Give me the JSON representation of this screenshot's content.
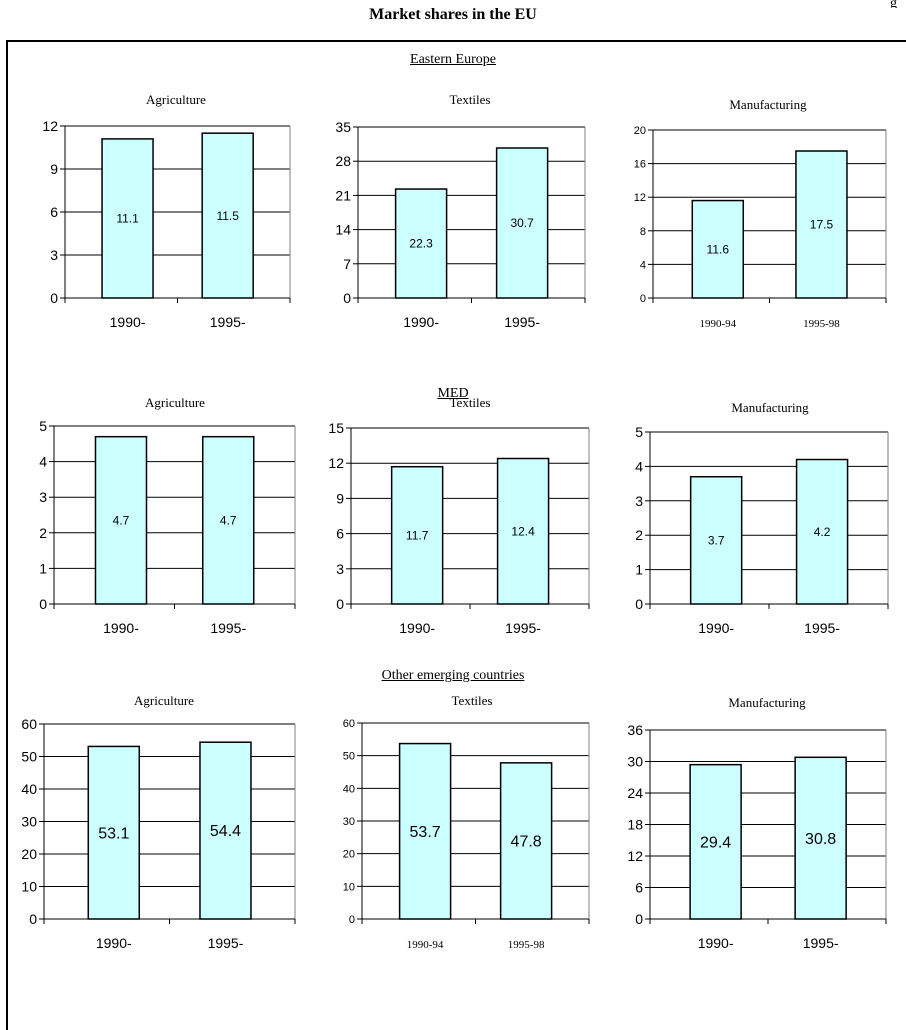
{
  "page_title": "Market shares in the EU",
  "sections": [
    {
      "label": "Eastern Europe"
    },
    {
      "label": "MED"
    },
    {
      "label": "Other emerging countries"
    }
  ],
  "colors": {
    "bar_fill": "#ccffff",
    "bar_stroke": "#000000"
  },
  "chart_data": [
    {
      "type": "bar",
      "group": "Eastern Europe",
      "title": "Agriculture",
      "categories": [
        "1990-",
        "1995-"
      ],
      "values": [
        11.1,
        11.5
      ],
      "data_labels": [
        "11.1",
        "11.5"
      ],
      "ylim": [
        0,
        12
      ],
      "yticks": [
        0,
        3,
        6,
        9,
        12
      ],
      "grid": true
    },
    {
      "type": "bar",
      "group": "Eastern Europe",
      "title": "Textiles",
      "categories": [
        "1990-",
        "1995-"
      ],
      "values": [
        22.3,
        30.7
      ],
      "data_labels": [
        "22.3",
        "30.7"
      ],
      "ylim": [
        0,
        35
      ],
      "yticks": [
        0,
        7,
        14,
        21,
        28,
        35
      ],
      "grid": true
    },
    {
      "type": "bar",
      "group": "Eastern Europe",
      "title": "Manufacturing",
      "categories": [
        "1990-94",
        "1995-98"
      ],
      "values": [
        11.6,
        17.5
      ],
      "data_labels": [
        "11.6",
        "17.5"
      ],
      "ylim": [
        0,
        20
      ],
      "yticks": [
        0,
        4,
        8,
        12,
        16,
        20
      ],
      "grid": true
    },
    {
      "type": "bar",
      "group": "MED",
      "title": "Agriculture",
      "categories": [
        "1990-",
        "1995-"
      ],
      "values": [
        4.7,
        4.7
      ],
      "data_labels": [
        "4.7",
        "4.7"
      ],
      "ylim": [
        0,
        5
      ],
      "yticks": [
        0,
        1,
        2,
        3,
        4,
        5
      ],
      "grid": true
    },
    {
      "type": "bar",
      "group": "MED",
      "title": "Textiles",
      "categories": [
        "1990-",
        "1995-"
      ],
      "values": [
        11.7,
        12.4
      ],
      "data_labels": [
        "11.7",
        "12.4"
      ],
      "ylim": [
        0,
        15
      ],
      "yticks": [
        0,
        3,
        6,
        9,
        12,
        15
      ],
      "grid": true
    },
    {
      "type": "bar",
      "group": "MED",
      "title": "Manufacturing",
      "categories": [
        "1990-",
        "1995-"
      ],
      "values": [
        3.7,
        4.2
      ],
      "data_labels": [
        "3.7",
        "4.2"
      ],
      "ylim": [
        0,
        5
      ],
      "yticks": [
        0,
        1,
        2,
        3,
        4,
        5
      ],
      "grid": true
    },
    {
      "type": "bar",
      "group": "Other emerging countries",
      "title": "Agriculture",
      "categories": [
        "1990-",
        "1995-"
      ],
      "values": [
        53.1,
        54.4
      ],
      "data_labels": [
        "53.1",
        "54.4"
      ],
      "ylim": [
        0,
        60
      ],
      "yticks": [
        0,
        10,
        20,
        30,
        40,
        50,
        60
      ],
      "grid": true
    },
    {
      "type": "bar",
      "group": "Other emerging countries",
      "title": "Textiles",
      "categories": [
        "1990-94",
        "1995-98"
      ],
      "values": [
        53.7,
        47.8
      ],
      "data_labels": [
        "53.7",
        "47.8"
      ],
      "ylim": [
        0,
        60
      ],
      "yticks": [
        0,
        10,
        20,
        30,
        40,
        50,
        60
      ],
      "grid": true
    },
    {
      "type": "bar",
      "group": "Other emerging countries",
      "title": "Manufacturing",
      "categories": [
        "1990-",
        "1995-"
      ],
      "values": [
        29.4,
        30.8
      ],
      "data_labels": [
        "29.4",
        "30.8"
      ],
      "ylim": [
        0,
        36
      ],
      "yticks": [
        0,
        6,
        12,
        18,
        24,
        30,
        36
      ],
      "grid": true
    }
  ]
}
